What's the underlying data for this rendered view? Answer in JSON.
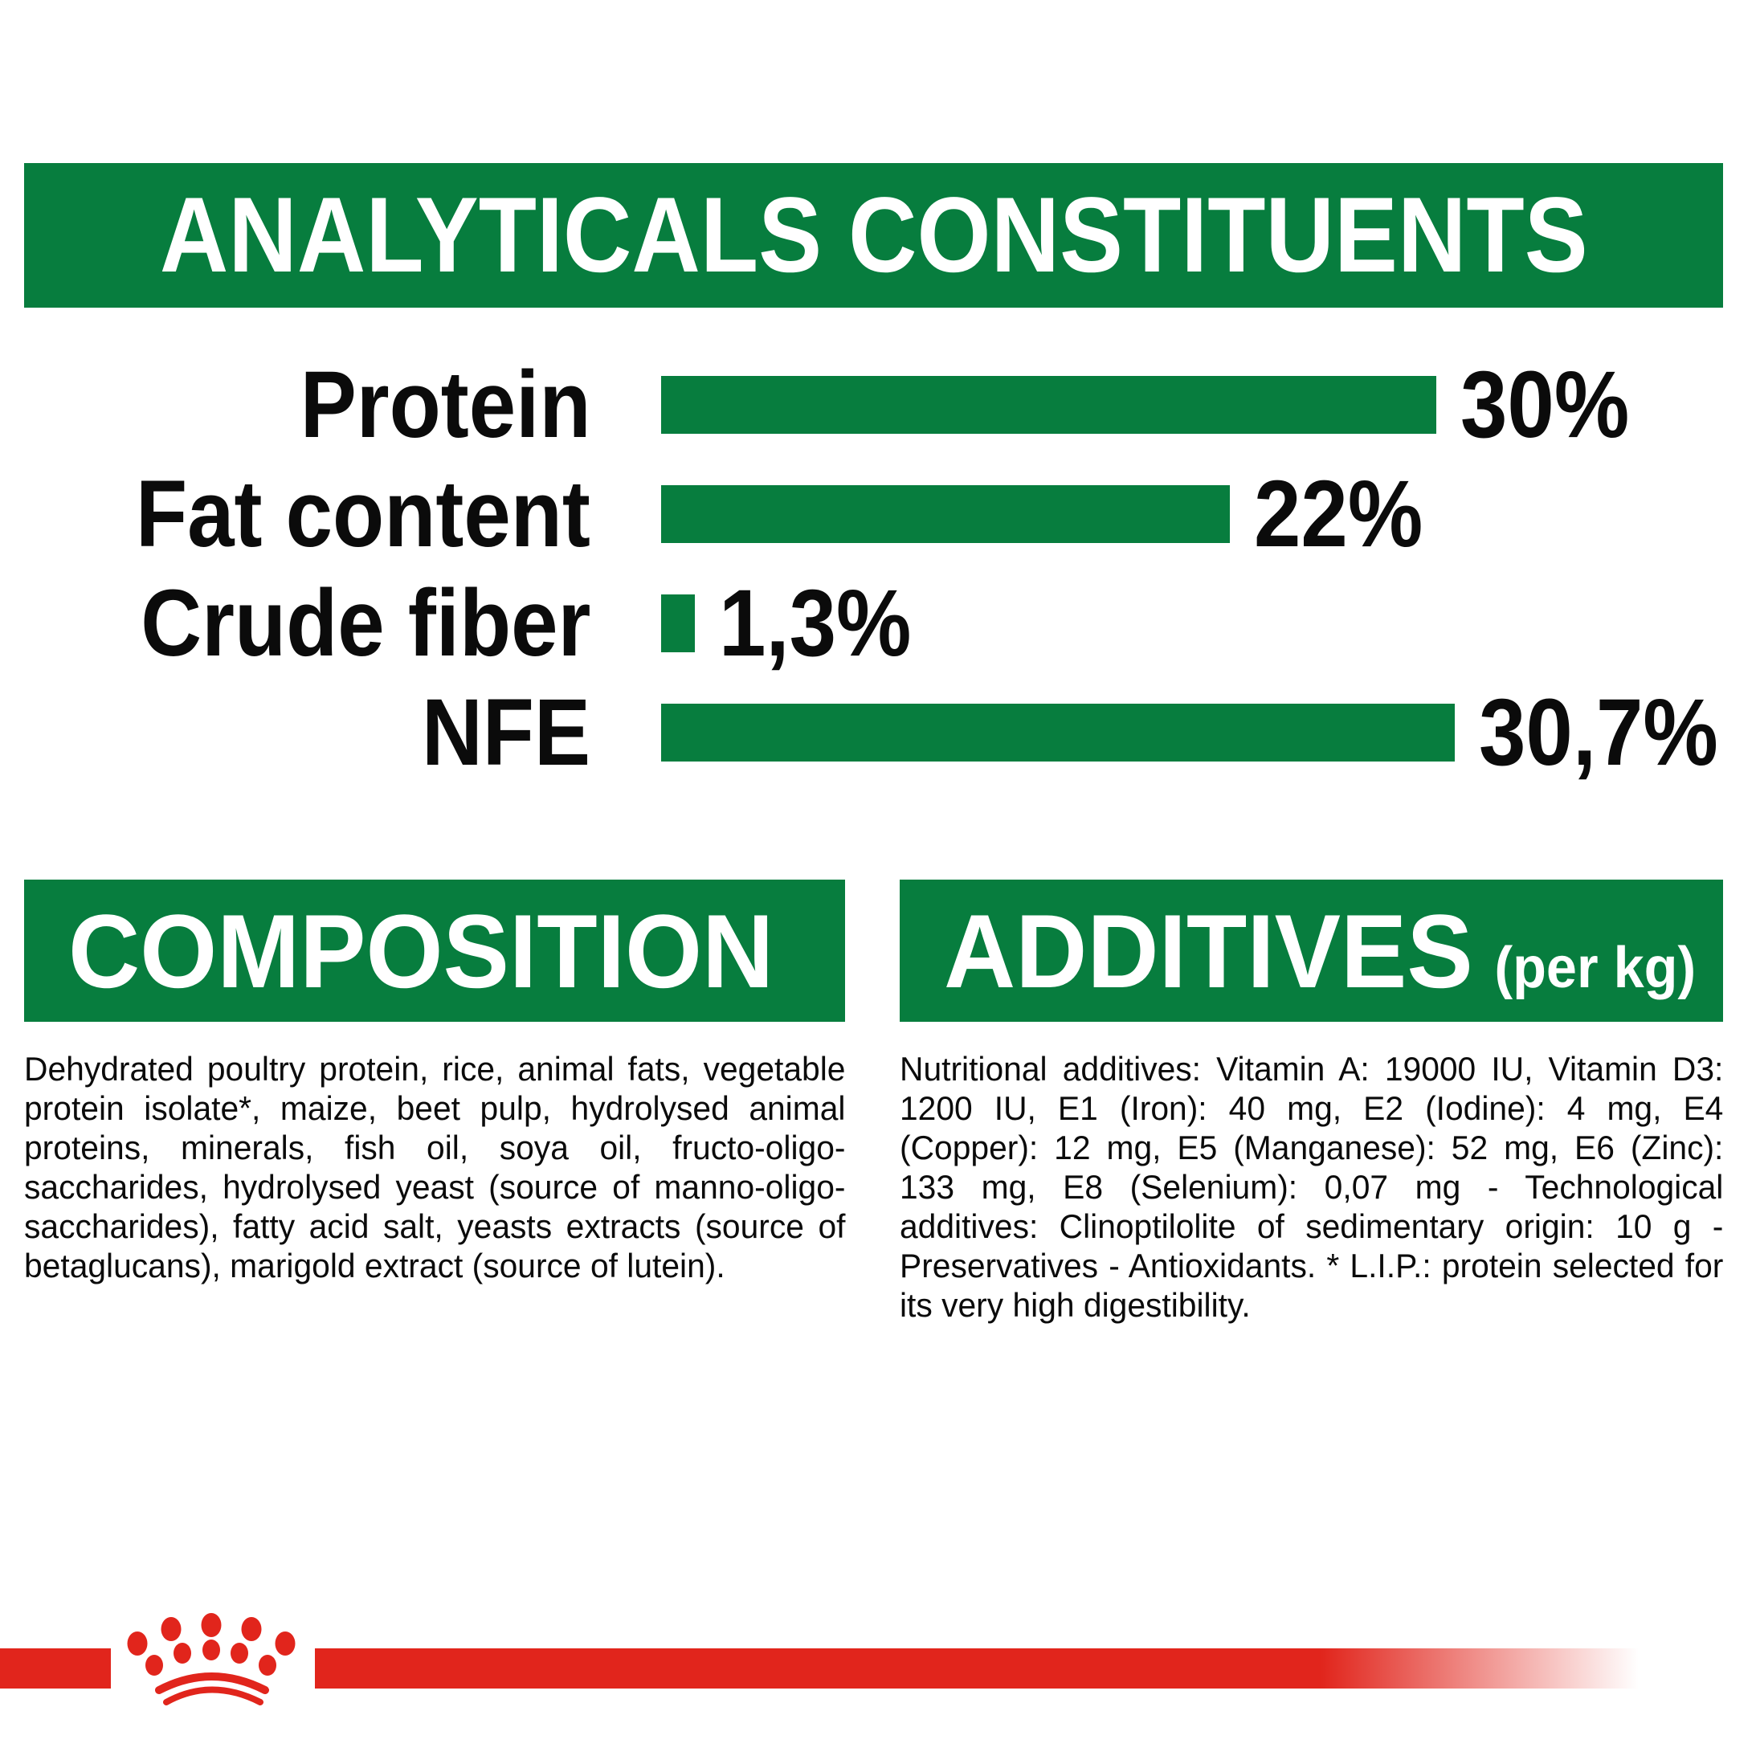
{
  "colors": {
    "green": "#077d3e",
    "red": "#e1251c",
    "text": "#0b0b0b",
    "white": "#ffffff"
  },
  "header": {
    "title": "ANALYTICALS CONSTITUENTS"
  },
  "chart_data": {
    "type": "bar",
    "orientation": "horizontal",
    "title": "ANALYTICALS CONSTITUENTS",
    "categories": [
      "Protein",
      "Fat content",
      "Crude fiber",
      "NFE"
    ],
    "values": [
      30,
      22,
      1.3,
      30.7
    ],
    "value_labels": [
      "30%",
      "22%",
      "1,3%",
      "30,7%"
    ],
    "unit": "%",
    "xlim": [
      0,
      32
    ],
    "bar_color": "#077d3e",
    "grid": false,
    "legend": false
  },
  "composition": {
    "title": "COMPOSITION",
    "body": "Dehydrated poultry protein, rice, animal fats, vegetable protein isolate*, maize, beet pulp, hydrolysed animal proteins, minerals, fish oil, soya oil, fructo-oligo-saccharides, hydrolysed yeast (source of manno-oligo-saccharides), fatty acid salt, yeasts extracts (source of betaglucans), marigold extract (source of lutein)."
  },
  "additives": {
    "title": "ADDITIVES",
    "title_suffix": "(per kg)",
    "body": "Nutritional additives: Vitamin A: 19000 IU, Vitamin D3: 1200 IU, E1 (Iron): 40 mg, E2 (Iodine): 4 mg, E4 (Copper): 12 mg, E5 (Manganese): 52 mg, E6 (Zinc): 133 mg, E8 (Selenium): 0,07 mg - Technological additives: Clinoptilolite of sedimentary origin: 10 g - Preservatives - Antioxidants. * L.I.P.: protein selected for its very high digestibility."
  },
  "footer": {
    "logo_icon": "crown-paw-logo"
  }
}
